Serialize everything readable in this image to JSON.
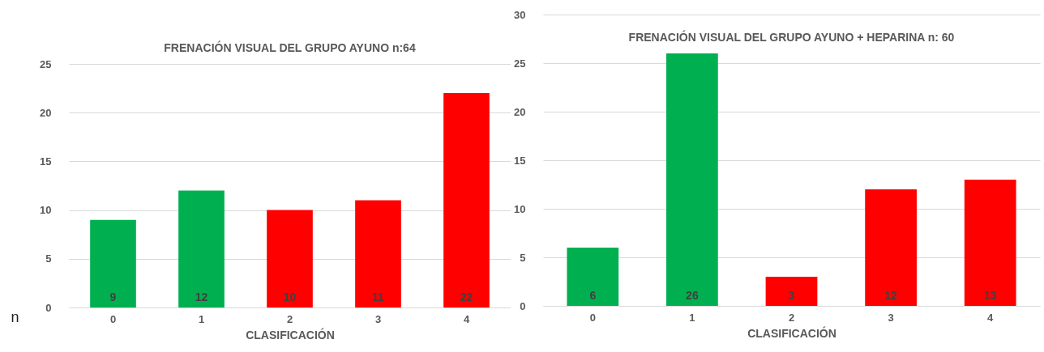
{
  "chart_data": [
    {
      "type": "bar",
      "title": "FRENACIÓN VISUAL DEL GRUPO AYUNO n:64",
      "xlabel": "CLASIFICACIÓN",
      "ylabel": "n",
      "categories": [
        "0",
        "1",
        "2",
        "3",
        "4"
      ],
      "values": [
        9,
        12,
        10,
        11,
        22
      ],
      "colors": [
        "#00b050",
        "#00b050",
        "#ff0000",
        "#ff0000",
        "#ff0000"
      ],
      "ylim": [
        0,
        25
      ],
      "yticks": [
        0,
        5,
        10,
        15,
        20,
        25
      ],
      "grid": "y",
      "data_labels": true
    },
    {
      "type": "bar",
      "title": "FRENACIÓN VISUAL DEL GRUPO AYUNO + HEPARINA n: 60",
      "xlabel": "CLASIFICACIÓN",
      "categories": [
        "0",
        "1",
        "2",
        "3",
        "4"
      ],
      "values": [
        6,
        26,
        3,
        12,
        13
      ],
      "colors": [
        "#00b050",
        "#00b050",
        "#ff0000",
        "#ff0000",
        "#ff0000"
      ],
      "ylim": [
        0,
        30
      ],
      "yticks": [
        0,
        5,
        10,
        15,
        20,
        25,
        30
      ],
      "grid": "y",
      "data_labels": true
    }
  ]
}
